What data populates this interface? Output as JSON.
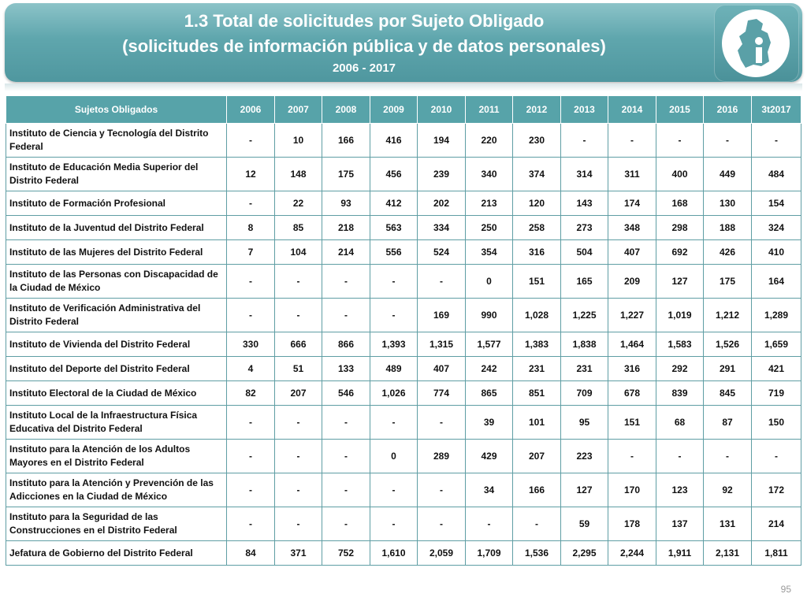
{
  "header": {
    "title_line1": "1.3 Total de solicitudes por Sujeto Obligado",
    "title_line2": "(solicitudes de información pública y de datos personales)",
    "years_range": "2006 - 2017"
  },
  "table": {
    "columns": [
      "Sujetos Obligados",
      "2006",
      "2007",
      "2008",
      "2009",
      "2010",
      "2011",
      "2012",
      "2013",
      "2014",
      "2015",
      "2016",
      "3t2017"
    ],
    "rows": [
      {
        "name": "Instituto de Ciencia y Tecnología del Distrito Federal",
        "values": [
          "-",
          "10",
          "166",
          "416",
          "194",
          "220",
          "230",
          "-",
          "-",
          "-",
          "-",
          "-"
        ],
        "tall": true
      },
      {
        "name": "Instituto de Educación Media Superior del Distrito Federal",
        "values": [
          "12",
          "148",
          "175",
          "456",
          "239",
          "340",
          "374",
          "314",
          "311",
          "400",
          "449",
          "484"
        ],
        "tall": true
      },
      {
        "name": "Instituto de Formación Profesional",
        "values": [
          "-",
          "22",
          "93",
          "412",
          "202",
          "213",
          "120",
          "143",
          "174",
          "168",
          "130",
          "154"
        ],
        "tall": false
      },
      {
        "name": "Instituto de la Juventud del Distrito Federal",
        "values": [
          "8",
          "85",
          "218",
          "563",
          "334",
          "250",
          "258",
          "273",
          "348",
          "298",
          "188",
          "324"
        ],
        "tall": false
      },
      {
        "name": "Instituto de las Mujeres del Distrito Federal",
        "values": [
          "7",
          "104",
          "214",
          "556",
          "524",
          "354",
          "316",
          "504",
          "407",
          "692",
          "426",
          "410"
        ],
        "tall": false
      },
      {
        "name": "Instituto de las Personas con Discapacidad de la Ciudad de México",
        "values": [
          "-",
          "-",
          "-",
          "-",
          "-",
          "0",
          "151",
          "165",
          "209",
          "127",
          "175",
          "164"
        ],
        "tall": true
      },
      {
        "name": "Instituto de Verificación Administrativa del Distrito Federal",
        "values": [
          "-",
          "-",
          "-",
          "-",
          "169",
          "990",
          "1,028",
          "1,225",
          "1,227",
          "1,019",
          "1,212",
          "1,289"
        ],
        "tall": true
      },
      {
        "name": "Instituto de Vivienda del Distrito Federal",
        "values": [
          "330",
          "666",
          "866",
          "1,393",
          "1,315",
          "1,577",
          "1,383",
          "1,838",
          "1,464",
          "1,583",
          "1,526",
          "1,659"
        ],
        "tall": false
      },
      {
        "name": "Instituto del Deporte del Distrito Federal",
        "values": [
          "4",
          "51",
          "133",
          "489",
          "407",
          "242",
          "231",
          "231",
          "316",
          "292",
          "291",
          "421"
        ],
        "tall": false
      },
      {
        "name": "Instituto Electoral de la Ciudad de México",
        "values": [
          "82",
          "207",
          "546",
          "1,026",
          "774",
          "865",
          "851",
          "709",
          "678",
          "839",
          "845",
          "719"
        ],
        "tall": false
      },
      {
        "name": "Instituto Local de la Infraestructura Física Educativa del Distrito Federal",
        "values": [
          "-",
          "-",
          "-",
          "-",
          "-",
          "39",
          "101",
          "95",
          "151",
          "68",
          "87",
          "150"
        ],
        "tall": true
      },
      {
        "name": "Instituto para la Atención de los Adultos Mayores en el Distrito Federal",
        "values": [
          "-",
          "-",
          "-",
          "0",
          "289",
          "429",
          "207",
          "223",
          "-",
          "-",
          "-",
          "-"
        ],
        "tall": true
      },
      {
        "name": "Instituto para la Atención y Prevención de las Adicciones en la Ciudad de México",
        "values": [
          "-",
          "-",
          "-",
          "-",
          "-",
          "34",
          "166",
          "127",
          "170",
          "123",
          "92",
          "172"
        ],
        "tall": true
      },
      {
        "name": "Instituto para la Seguridad de las Construcciones en el Distrito Federal",
        "values": [
          "-",
          "-",
          "-",
          "-",
          "-",
          "-",
          "-",
          "59",
          "178",
          "137",
          "131",
          "214"
        ],
        "tall": true
      },
      {
        "name": "Jefatura de Gobierno del Distrito Federal",
        "values": [
          "84",
          "371",
          "752",
          "1,610",
          "2,059",
          "1,709",
          "1,536",
          "2,295",
          "2,244",
          "1,911",
          "2,131",
          "1,811"
        ],
        "tall": false
      }
    ]
  },
  "footer": {
    "page_number": "95"
  },
  "colors": {
    "banner": "#5fa6ad",
    "header_row": "#57a3a9",
    "grid": "#5f9ea4"
  },
  "icons": {
    "logo": "cdmx-info-logo-icon"
  }
}
